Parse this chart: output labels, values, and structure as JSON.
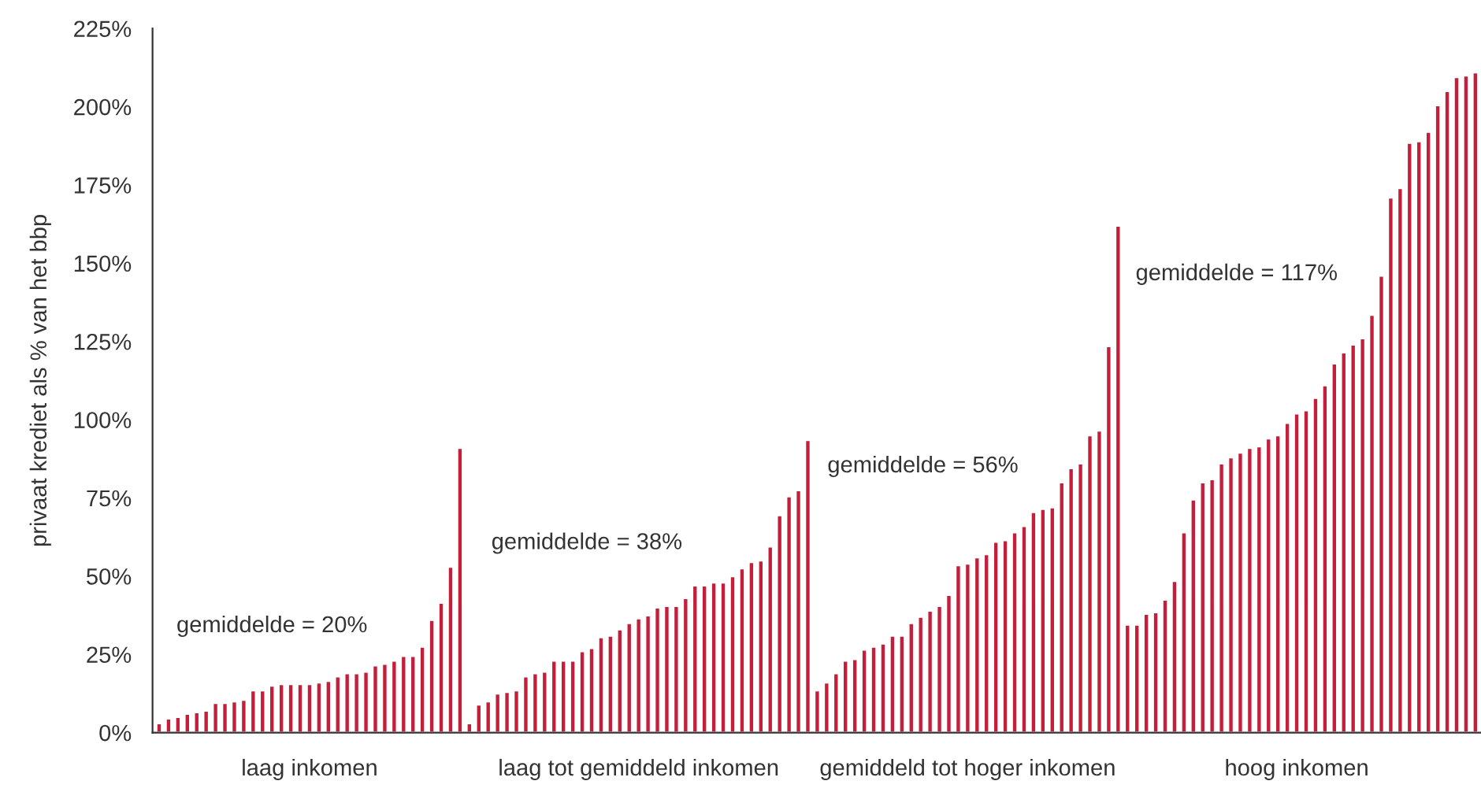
{
  "chart_data": {
    "type": "bar",
    "ylabel": "privaat krediet als % van het bbp",
    "categories": [
      null,
      null,
      null,
      null,
      null,
      null,
      null,
      null,
      null,
      null,
      null,
      null,
      null,
      null,
      null,
      null,
      "laag inkomen",
      null,
      null,
      null,
      null,
      null,
      null,
      null,
      null,
      null,
      null,
      null,
      null,
      null,
      null,
      null,
      null,
      null,
      null,
      null,
      null,
      null,
      null,
      null,
      null,
      null,
      null,
      null,
      null,
      null,
      null,
      null,
      null,
      null,
      null,
      "laag tot gemiddeld inkomen",
      null,
      null,
      null,
      null,
      null,
      null,
      null,
      null,
      null,
      null,
      null,
      null,
      null,
      null,
      null,
      null,
      null,
      null,
      null,
      null,
      null,
      null,
      null,
      null,
      null,
      null,
      null,
      null,
      null,
      null,
      null,
      null,
      null,
      null,
      "gemiddeld tot hoger inkomen",
      null,
      null,
      null,
      null,
      null,
      null,
      null,
      null,
      null,
      null,
      null,
      null,
      null,
      null,
      null,
      null,
      null,
      null,
      null,
      null,
      null,
      null,
      null,
      null,
      null,
      null,
      null,
      null,
      null,
      null,
      null,
      null,
      null,
      null,
      "hoog inkomen",
      null,
      null,
      null,
      null,
      null,
      null,
      null,
      null,
      null,
      null,
      null,
      null,
      null,
      null,
      null,
      null,
      null,
      null,
      null
    ],
    "series": [
      {
        "color": "#c41e3a",
        "values": [
          3,
          4.5,
          5,
          6,
          6.5,
          7,
          9.5,
          9.5,
          10,
          10.5,
          13.5,
          13.5,
          15,
          15.5,
          15.5,
          15.5,
          15.5,
          16,
          16.5,
          18,
          19,
          19,
          19.5,
          21.5,
          22,
          23,
          24.5,
          24.5,
          27.5,
          36,
          41.5,
          53,
          91,
          3,
          9,
          10,
          12.5,
          13,
          13.5,
          18,
          19,
          19.5,
          23,
          23,
          23,
          26,
          27,
          30.5,
          31,
          33,
          35,
          36.5,
          37.5,
          40,
          40.5,
          40.5,
          43,
          47,
          47,
          48,
          48,
          50,
          52.5,
          54.5,
          55,
          59.5,
          69.5,
          75.5,
          77.5,
          93.5,
          13.5,
          16,
          19,
          23,
          23.5,
          26.5,
          27.5,
          28.5,
          31,
          31,
          35,
          37,
          39,
          40.5,
          44,
          53.5,
          54,
          56,
          57,
          61,
          61.5,
          64,
          66,
          70.5,
          71.5,
          72,
          80,
          84.5,
          86,
          95,
          96.5,
          123.5,
          162,
          34.5,
          34.5,
          38,
          38.5,
          42.5,
          48.5,
          64,
          74.5,
          80,
          81,
          86,
          88,
          89.5,
          91,
          91.5,
          94,
          95,
          99,
          102,
          103,
          107,
          111,
          118,
          121.5,
          124,
          126,
          133.5,
          146,
          171,
          174,
          188.5,
          189,
          192,
          200.5,
          205,
          209.5,
          210,
          211
        ]
      }
    ],
    "ylim": [
      0,
      225
    ],
    "yticks": [
      {
        "value": 0,
        "label": "0%"
      },
      {
        "value": 25,
        "label": "25%"
      },
      {
        "value": 50,
        "label": "50%"
      },
      {
        "value": 75,
        "label": "75%"
      },
      {
        "value": 100,
        "label": "100%"
      },
      {
        "value": 125,
        "label": "125%"
      },
      {
        "value": 150,
        "label": "150%"
      },
      {
        "value": 175,
        "label": "175%"
      },
      {
        "value": 200,
        "label": "200%"
      },
      {
        "value": 225,
        "label": "225%"
      }
    ],
    "annotations": [
      "gemiddelde = 20%",
      "gemiddelde = 38%",
      "gemiddelde = 56%",
      "gemiddelde = 117%"
    ],
    "grid": false,
    "legend": false
  }
}
